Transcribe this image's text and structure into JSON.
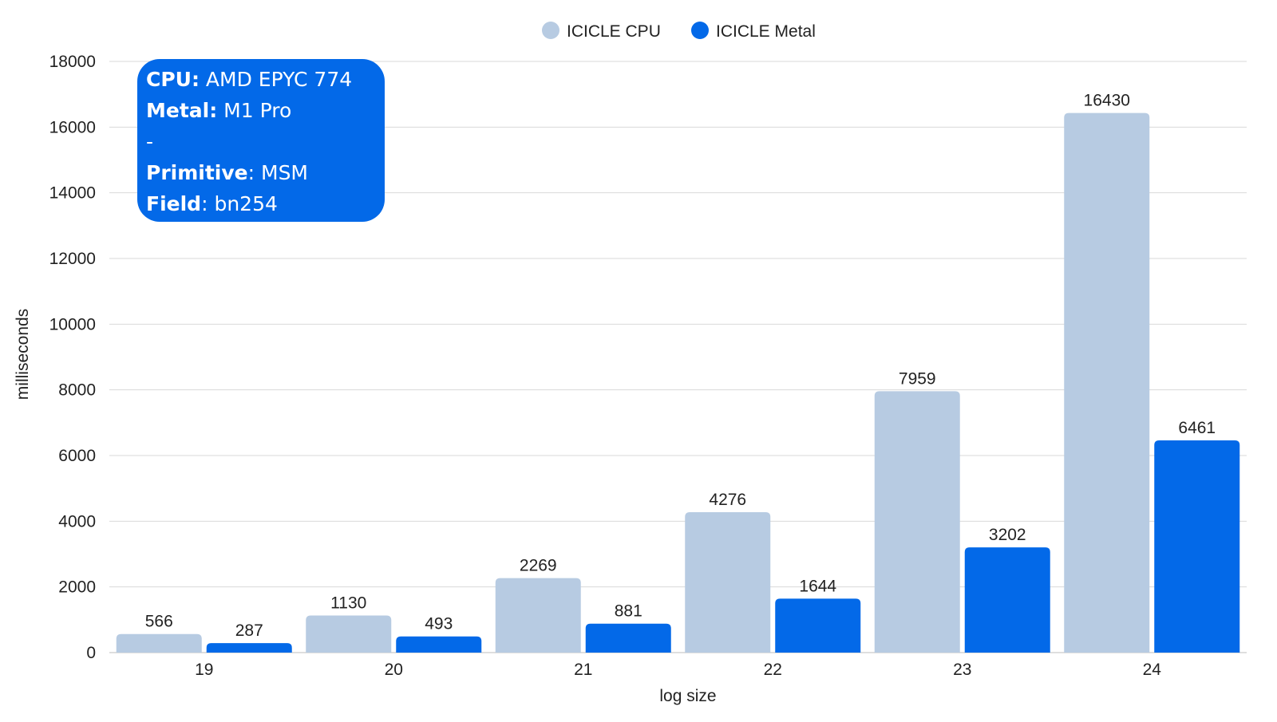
{
  "chart_data": {
    "type": "bar",
    "title": "",
    "xlabel": "log size",
    "ylabel": "milliseconds",
    "categories": [
      "19",
      "20",
      "21",
      "22",
      "23",
      "24"
    ],
    "series": [
      {
        "name": "ICICLE CPU",
        "color": "#b7cbe2",
        "values": [
          566,
          1130,
          2269,
          4276,
          7959,
          16430
        ]
      },
      {
        "name": "ICICLE Metal",
        "color": "#0369e8",
        "values": [
          287,
          493,
          881,
          1644,
          3202,
          6461
        ]
      }
    ],
    "ylim": [
      0,
      18000
    ],
    "yticks": [
      0,
      2000,
      4000,
      6000,
      8000,
      10000,
      12000,
      14000,
      16000,
      18000
    ],
    "grid": true,
    "legend_position": "top-center",
    "data_labels": true
  },
  "infobox": {
    "cpu_key": "CPU:",
    "cpu_val": " AMD EPYC 774",
    "metal_key": "Metal:",
    "metal_val": " M1 Pro",
    "sep": "-",
    "primitive_key": "Primitive",
    "primitive_val": ": MSM",
    "field_key": "Field",
    "field_val": ": bn254"
  }
}
